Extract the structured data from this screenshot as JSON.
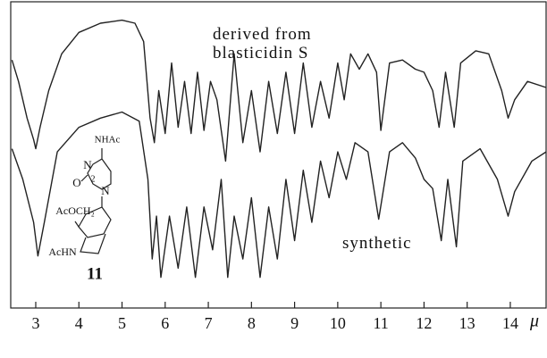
{
  "chart_data": {
    "type": "line",
    "x_label": "μ",
    "xlim": [
      2.42,
      14.83
    ],
    "xticks": [
      3,
      4,
      5,
      6,
      7,
      8,
      9,
      10,
      11,
      12,
      13,
      14
    ],
    "ylim": [
      0,
      100
    ],
    "series": [
      {
        "name": "derived from blasticidin S",
        "color": "#222222",
        "x": [
          2.45,
          2.6,
          2.8,
          2.95,
          3.0,
          3.1,
          3.3,
          3.6,
          4.0,
          4.5,
          5.0,
          5.3,
          5.5,
          5.65,
          5.75,
          5.85,
          6.0,
          6.15,
          6.3,
          6.45,
          6.6,
          6.75,
          6.9,
          7.05,
          7.2,
          7.4,
          7.6,
          7.8,
          8.0,
          8.2,
          8.4,
          8.6,
          8.8,
          9.0,
          9.2,
          9.4,
          9.6,
          9.8,
          10.0,
          10.15,
          10.3,
          10.5,
          10.7,
          10.9,
          11.0,
          11.2,
          11.5,
          11.8,
          12.0,
          12.2,
          12.35,
          12.5,
          12.7,
          12.85,
          13.2,
          13.5,
          13.8,
          13.95,
          14.1,
          14.4,
          14.83
        ],
        "values": [
          81,
          74,
          62,
          55,
          52,
          59,
          71,
          83,
          90,
          93,
          94,
          93,
          87,
          62,
          54,
          71,
          57,
          80,
          59,
          74,
          57,
          77,
          58,
          74,
          68,
          48,
          83,
          54,
          71,
          51,
          74,
          57,
          77,
          57,
          80,
          59,
          74,
          62,
          80,
          68,
          83,
          78,
          83,
          77,
          58,
          80,
          81,
          78,
          77,
          71,
          59,
          77,
          59,
          80,
          84,
          83,
          71,
          62,
          68,
          74,
          72
        ]
      },
      {
        "name": "synthetic",
        "color": "#222222",
        "x": [
          2.45,
          2.7,
          2.95,
          3.05,
          3.2,
          3.5,
          4.0,
          4.5,
          5.0,
          5.4,
          5.6,
          5.7,
          5.8,
          5.9,
          6.1,
          6.3,
          6.5,
          6.7,
          6.9,
          7.1,
          7.3,
          7.45,
          7.6,
          7.8,
          8.0,
          8.2,
          8.4,
          8.6,
          8.8,
          9.0,
          9.2,
          9.4,
          9.6,
          9.8,
          10.0,
          10.2,
          10.4,
          10.7,
          10.95,
          11.2,
          11.5,
          11.8,
          12.0,
          12.2,
          12.4,
          12.55,
          12.75,
          12.9,
          13.3,
          13.7,
          13.95,
          14.1,
          14.5,
          14.83
        ],
        "values": [
          52,
          42,
          28,
          17,
          28,
          51,
          59,
          62,
          64,
          61,
          42,
          16,
          30,
          10,
          30,
          13,
          33,
          10,
          33,
          19,
          42,
          10,
          30,
          16,
          36,
          10,
          33,
          16,
          42,
          22,
          45,
          28,
          48,
          36,
          51,
          42,
          54,
          51,
          29,
          51,
          54,
          49,
          42,
          39,
          22,
          42,
          20,
          48,
          52,
          42,
          30,
          38,
          48,
          51
        ]
      }
    ],
    "structure_labels": [
      "NHAc",
      "N",
      "2",
      "O",
      "N",
      "AcOCH₂",
      "AcHN",
      "11"
    ]
  }
}
